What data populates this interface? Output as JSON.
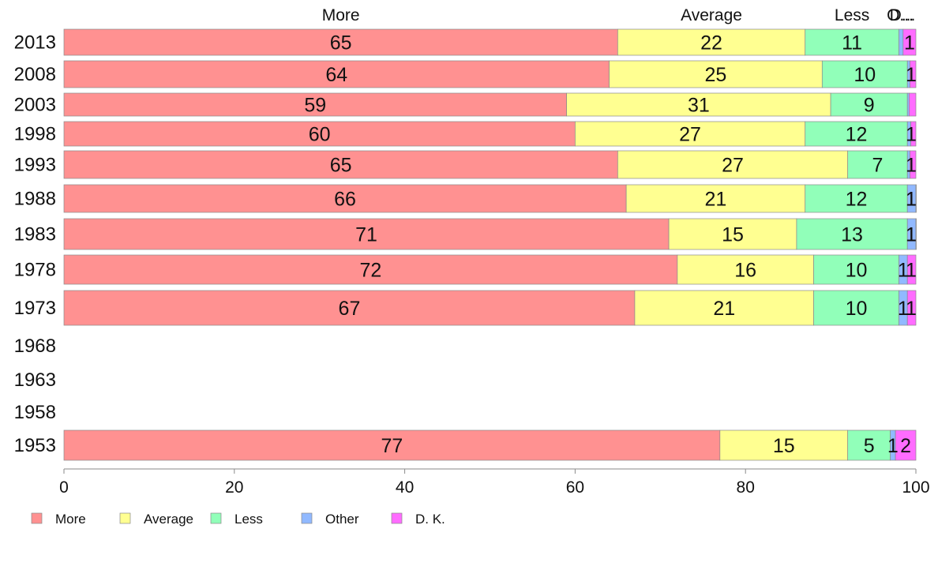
{
  "chart_data": {
    "type": "bar",
    "orientation": "horizontal",
    "stacked": true,
    "categories": [
      "2013",
      "2008",
      "2003",
      "1998",
      "1993",
      "1988",
      "1983",
      "1978",
      "1973",
      "1968",
      "1963",
      "1958",
      "1953"
    ],
    "series": [
      {
        "name": "More",
        "color": "#ff9191",
        "values": [
          65,
          64,
          59,
          60,
          65,
          66,
          71,
          72,
          67,
          null,
          null,
          null,
          77
        ]
      },
      {
        "name": "Average",
        "color": "#ffff91",
        "values": [
          22,
          25,
          31,
          27,
          27,
          21,
          15,
          16,
          21,
          null,
          null,
          null,
          15
        ]
      },
      {
        "name": "Less",
        "color": "#91ffb9",
        "values": [
          11,
          10,
          9,
          12,
          7,
          12,
          13,
          10,
          10,
          null,
          null,
          null,
          5
        ]
      },
      {
        "name": "Other",
        "color": "#91b9ff",
        "values": [
          0.5,
          0.3,
          0.2,
          0.4,
          0.3,
          1,
          1,
          1,
          1,
          null,
          null,
          null,
          0.6
        ]
      },
      {
        "name": "D. K.",
        "color": "#ff6cff",
        "values": [
          1,
          0.6,
          0.6,
          0.8,
          0.7,
          1,
          1,
          1,
          1,
          null,
          null,
          null,
          2
        ]
      }
    ],
    "segment_labels": [
      [
        "65",
        "22",
        "11",
        "",
        "1"
      ],
      [
        "64",
        "25",
        "10",
        "",
        "1"
      ],
      [
        "59",
        "31",
        "9",
        "",
        ""
      ],
      [
        "60",
        "27",
        "12",
        "",
        "1"
      ],
      [
        "65",
        "27",
        "7",
        "",
        "1"
      ],
      [
        "66",
        "21",
        "12",
        "1",
        "1"
      ],
      [
        "71",
        "15",
        "13",
        "1",
        "1"
      ],
      [
        "72",
        "16",
        "10",
        "1",
        "1"
      ],
      [
        "67",
        "21",
        "10",
        "1",
        "1"
      ],
      [
        "",
        "",
        "",
        "",
        ""
      ],
      [
        "",
        "",
        "",
        "",
        ""
      ],
      [
        "",
        "",
        "",
        "",
        ""
      ],
      [
        "77",
        "15",
        "5",
        "1",
        "2"
      ]
    ],
    "top_labels": [
      "More",
      "Average",
      "Less",
      "O...",
      "D..."
    ],
    "x_ticks": [
      0,
      20,
      40,
      60,
      80,
      100
    ],
    "xlim": [
      0,
      100
    ],
    "legend": {
      "position": "bottom-left",
      "entries": [
        "More",
        "Average",
        "Less",
        "Other",
        "D. K."
      ]
    },
    "grid": false
  }
}
